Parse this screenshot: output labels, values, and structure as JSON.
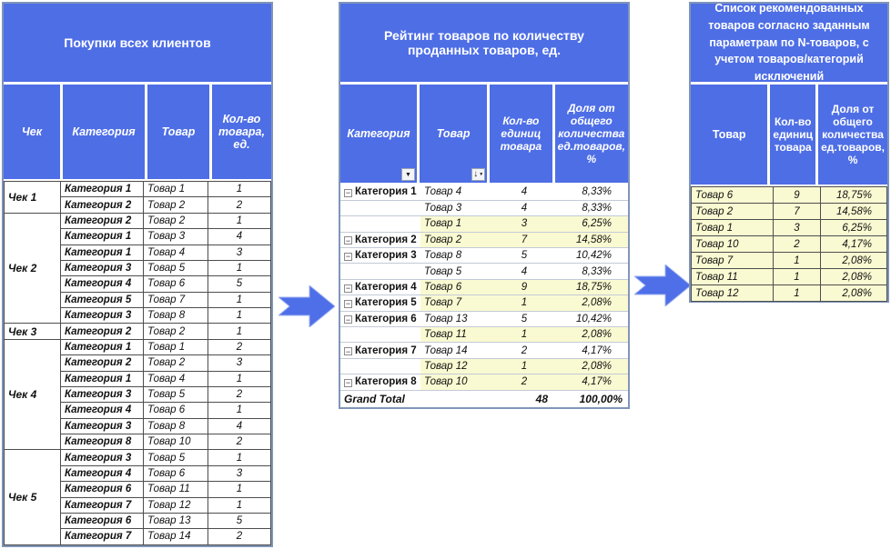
{
  "colors": {
    "header_blue": "#4e6ee6",
    "outer_border": "#8095b8",
    "highlight_yellow": "#fafad2",
    "arrow_blue": "#4f6fe8"
  },
  "left_table": {
    "title": "Покупки всех клиентов",
    "columns": [
      "Чек",
      "Категория",
      "Товар",
      "Кол-во товара, ед."
    ],
    "groups": [
      {
        "check": "Чек 1",
        "rows": [
          [
            "Категория 1",
            "Товар 1",
            "1"
          ],
          [
            "Категория 2",
            "Товар 2",
            "2"
          ]
        ]
      },
      {
        "check": "Чек 2",
        "rows": [
          [
            "Категория 2",
            "Товар 2",
            "1"
          ],
          [
            "Категория 1",
            "Товар 3",
            "4"
          ],
          [
            "Категория 1",
            "Товар 4",
            "3"
          ],
          [
            "Категория 3",
            "Товар 5",
            "1"
          ],
          [
            "Категория 4",
            "Товар 6",
            "5"
          ],
          [
            "Категория 5",
            "Товар 7",
            "1"
          ],
          [
            "Категория 3",
            "Товар 8",
            "1"
          ]
        ]
      },
      {
        "check": "Чек 3",
        "rows": [
          [
            "Категория 2",
            "Товар 2",
            "1"
          ]
        ]
      },
      {
        "check": "Чек 4",
        "rows": [
          [
            "Категория 1",
            "Товар 1",
            "2"
          ],
          [
            "Категория 2",
            "Товар 2",
            "3"
          ],
          [
            "Категория 1",
            "Товар 4",
            "1"
          ],
          [
            "Категория 3",
            "Товар 5",
            "2"
          ],
          [
            "Категория 4",
            "Товар 6",
            "1"
          ],
          [
            "Категория 3",
            "Товар 8",
            "4"
          ],
          [
            "Категория 8",
            "Товар 10",
            "2"
          ]
        ]
      },
      {
        "check": "Чек 5",
        "rows": [
          [
            "Категория 3",
            "Товар 5",
            "1"
          ],
          [
            "Категория 4",
            "Товар 6",
            "3"
          ],
          [
            "Категория 6",
            "Товар 11",
            "1"
          ],
          [
            "Категория 7",
            "Товар 12",
            "1"
          ],
          [
            "Категория 6",
            "Товар 13",
            "5"
          ],
          [
            "Категория 7",
            "Товар 14",
            "2"
          ]
        ]
      }
    ]
  },
  "middle_table": {
    "title": "Рейтинг товаров по количеству проданных товаров, ед.",
    "columns": [
      "Категория",
      "Товар",
      "Кол-во единиц товара",
      "Доля от общего количества ед.товаров, %"
    ],
    "filter_dropdown_icon": "▼",
    "sort_indicator_icon": "↓",
    "collapse_icon": "−",
    "rows": [
      {
        "category": "Категория 1",
        "product": "Товар 4",
        "qty": "4",
        "share": "8,33%",
        "highlight": false
      },
      {
        "category": "",
        "product": "Товар 3",
        "qty": "4",
        "share": "8,33%",
        "highlight": false
      },
      {
        "category": "",
        "product": "Товар 1",
        "qty": "3",
        "share": "6,25%",
        "highlight": true
      },
      {
        "category": "Категория 2",
        "product": "Товар 2",
        "qty": "7",
        "share": "14,58%",
        "highlight": true
      },
      {
        "category": "Категория 3",
        "product": "Товар 8",
        "qty": "5",
        "share": "10,42%",
        "highlight": false
      },
      {
        "category": "",
        "product": "Товар 5",
        "qty": "4",
        "share": "8,33%",
        "highlight": false
      },
      {
        "category": "Категория 4",
        "product": "Товар 6",
        "qty": "9",
        "share": "18,75%",
        "highlight": true
      },
      {
        "category": "Категория 5",
        "product": "Товар 7",
        "qty": "1",
        "share": "2,08%",
        "highlight": true
      },
      {
        "category": "Категория 6",
        "product": "Товар 13",
        "qty": "5",
        "share": "10,42%",
        "highlight": false
      },
      {
        "category": "",
        "product": "Товар 11",
        "qty": "1",
        "share": "2,08%",
        "highlight": true
      },
      {
        "category": "Категория 7",
        "product": "Товар 14",
        "qty": "2",
        "share": "4,17%",
        "highlight": false
      },
      {
        "category": "",
        "product": "Товар 12",
        "qty": "1",
        "share": "2,08%",
        "highlight": true
      },
      {
        "category": "Категория 8",
        "product": "Товар 10",
        "qty": "2",
        "share": "4,17%",
        "highlight": true
      }
    ],
    "grand_total": {
      "label": "Grand Total",
      "qty": "48",
      "share": "100,00%"
    }
  },
  "right_table": {
    "title": "Список рекомендованных товаров согласно заданным параметрам по N-товаров, с учетом товаров/категорий исключений",
    "columns": [
      "Товар",
      "Кол-во единиц товара",
      "Доля от общего количества ед.товаров, %"
    ],
    "rows": [
      [
        "Товар 6",
        "9",
        "18,75%"
      ],
      [
        "Товар 2",
        "7",
        "14,58%"
      ],
      [
        "Товар 1",
        "3",
        "6,25%"
      ],
      [
        "Товар 10",
        "2",
        "4,17%"
      ],
      [
        "Товар 7",
        "1",
        "2,08%"
      ],
      [
        "Товар 11",
        "1",
        "2,08%"
      ],
      [
        "Товар 12",
        "1",
        "2,08%"
      ]
    ]
  }
}
